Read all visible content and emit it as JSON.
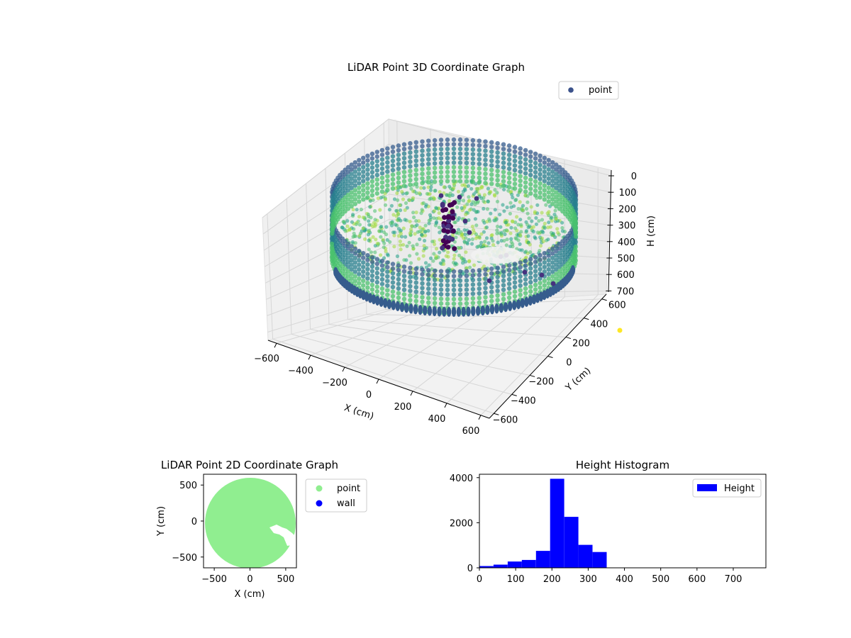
{
  "chart_data": [
    {
      "type": "scatter",
      "title": "LiDAR Point 3D Coordinate Graph",
      "xlabel": "X (cm)",
      "ylabel": "Y (cm)",
      "zlabel": "H (cm)",
      "x_ticks": [
        "−600",
        "−400",
        "−200",
        "0",
        "200",
        "400",
        "600"
      ],
      "y_ticks": [
        "−600",
        "−400",
        "−200",
        "0",
        "200",
        "400",
        "600"
      ],
      "z_ticks": [
        "0",
        "100",
        "200",
        "300",
        "400",
        "500",
        "600",
        "700"
      ],
      "xlim": [
        -650,
        650
      ],
      "ylim": [
        -650,
        650
      ],
      "zlim": [
        0,
        750
      ],
      "z_axis_inverted": true,
      "colormap": "viridis",
      "legend": {
        "placement": "top-right",
        "entries": [
          {
            "name": "point",
            "color": "#3b528b"
          }
        ]
      },
      "grid": true
    },
    {
      "type": "scatter",
      "title": "LiDAR Point 2D Coordinate Graph",
      "xlabel": "X (cm)",
      "ylabel": "Y (cm)",
      "x_ticks": [
        "−500",
        "0",
        "500"
      ],
      "y_ticks": [
        "500",
        "0",
        "−500"
      ],
      "xlim": [
        -650,
        650
      ],
      "ylim": [
        -650,
        650
      ],
      "legend": {
        "placement": "outside-right",
        "entries": [
          {
            "name": "point",
            "color": "#90ee90"
          },
          {
            "name": "wall",
            "color": "#0000ff"
          }
        ]
      },
      "grid": false
    },
    {
      "type": "bar",
      "title": "Height Histogram",
      "xlabel": "",
      "ylabel": "",
      "bin_width": 39,
      "bins": [
        {
          "x": 0,
          "value": 80
        },
        {
          "x": 39,
          "value": 140
        },
        {
          "x": 78,
          "value": 280
        },
        {
          "x": 117,
          "value": 350
        },
        {
          "x": 156,
          "value": 750
        },
        {
          "x": 195,
          "value": 3950
        },
        {
          "x": 234,
          "value": 2260
        },
        {
          "x": 273,
          "value": 1020
        },
        {
          "x": 312,
          "value": 700
        }
      ],
      "x_ticks": [
        "0",
        "100",
        "200",
        "300",
        "400",
        "500",
        "600",
        "700"
      ],
      "y_ticks": [
        "0",
        "2000",
        "4000"
      ],
      "xlim": [
        0,
        790
      ],
      "ylim": [
        0,
        4150
      ],
      "color": "#0000ff",
      "legend": {
        "placement": "top-right",
        "entries": [
          {
            "name": "Height",
            "color": "#0000ff"
          }
        ]
      },
      "grid": false
    }
  ]
}
